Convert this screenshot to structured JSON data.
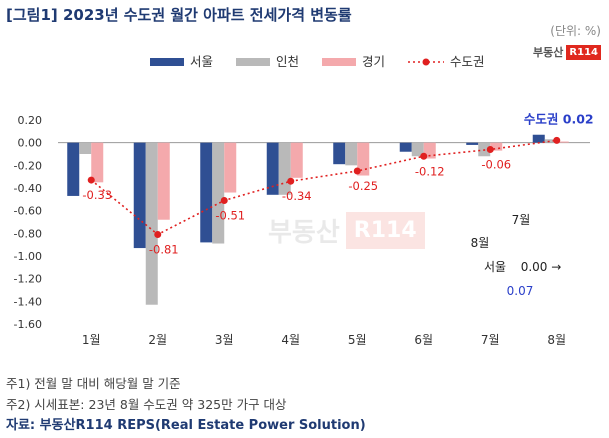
{
  "header": {
    "title": "[그림1] 2023년 수도권 월간 아파트 전세가격 변동률",
    "unit": "(단위: %)"
  },
  "logo": {
    "text": "부동산",
    "mark": "R114"
  },
  "chart_data": {
    "type": "bar",
    "categories": [
      "1월",
      "2월",
      "3월",
      "4월",
      "5월",
      "6월",
      "7월",
      "8월"
    ],
    "series": [
      {
        "name": "서울",
        "type": "bar",
        "color": "#2f4f93",
        "values": [
          -0.47,
          -0.93,
          -0.88,
          -0.46,
          -0.19,
          -0.08,
          -0.02,
          0.07
        ]
      },
      {
        "name": "인천",
        "type": "bar",
        "color": "#b9b9b9",
        "values": [
          -0.1,
          -1.43,
          -0.89,
          -0.46,
          -0.2,
          -0.12,
          -0.12,
          0.03
        ]
      },
      {
        "name": "경기",
        "type": "bar",
        "color": "#f4a9ac",
        "values": [
          -0.35,
          -0.68,
          -0.44,
          -0.31,
          -0.29,
          -0.14,
          -0.07,
          0.01
        ]
      },
      {
        "name": "수도권",
        "type": "line",
        "color": "#e02020",
        "values": [
          -0.33,
          -0.81,
          -0.51,
          -0.34,
          -0.25,
          -0.12,
          -0.06,
          0.02
        ]
      }
    ],
    "data_labels": [
      "-0.33",
      "-0.81",
      "-0.51",
      "-0.34",
      "-0.25",
      "-0.12",
      "-0.06"
    ],
    "highlight_label": {
      "series": "수도권",
      "value": "0.02"
    },
    "annotations": [
      "7월",
      "8월",
      "서울",
      "0.00 →",
      "0.07"
    ],
    "yticks": [
      "0.20",
      "0.00",
      "-0.20",
      "-0.40",
      "-0.60",
      "-0.80",
      "-1.00",
      "-1.20",
      "-1.40",
      "-1.60"
    ],
    "ylim": [
      -1.6,
      0.2
    ],
    "legend_position": "top",
    "grid": false
  },
  "notes": [
    "주1) 전월 말 대비 해당월 말 기준",
    "주2) 시세표본: 23년 8월 수도권 약 325만 가구 대상"
  ],
  "source": "자료: 부동산R114 REPS(Real Estate Power Solution)"
}
